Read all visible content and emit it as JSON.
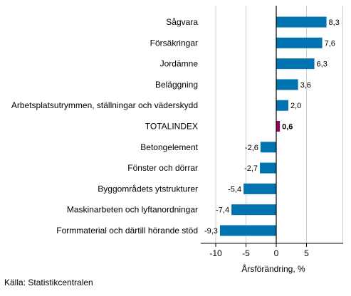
{
  "chart_data": {
    "type": "bar",
    "orientation": "horizontal",
    "categories": [
      "Sågvara",
      "Försäkringar",
      "Jordämne",
      "Beläggning",
      "Arbetsplatsutrymmen, ställningar och väderskydd",
      "TOTALINDEX",
      "Betongelement",
      "Fönster och dörrar",
      "Byggområdets ytstrukturer",
      "Maskinarbeten och lyftanordningar",
      "Formmaterial och därtill hörande stöd"
    ],
    "values": [
      8.3,
      7.6,
      6.3,
      3.6,
      2.0,
      0.6,
      -2.6,
      -2.7,
      -5.4,
      -7.4,
      -9.3
    ],
    "value_labels": [
      "8,3",
      "7,6",
      "6,3",
      "3,6",
      "2,0",
      "0,6",
      "-2,6",
      "-2,7",
      "-5,4",
      "-7,4",
      "-9,3"
    ],
    "highlight_category": "TOTALINDEX",
    "xlabel": "Årsförändring, %",
    "xlim": [
      -11,
      11
    ],
    "xticks": [
      -10,
      -5,
      0,
      5
    ],
    "xtick_labels": [
      "-10",
      "-5",
      "0",
      "5"
    ],
    "grid": "vertical",
    "colors": {
      "bar": "#0073b0",
      "highlight": "#9b0068",
      "grid": "#cfcfcf",
      "axis": "#000000"
    }
  },
  "source": "Källa: Statistikcentralen"
}
